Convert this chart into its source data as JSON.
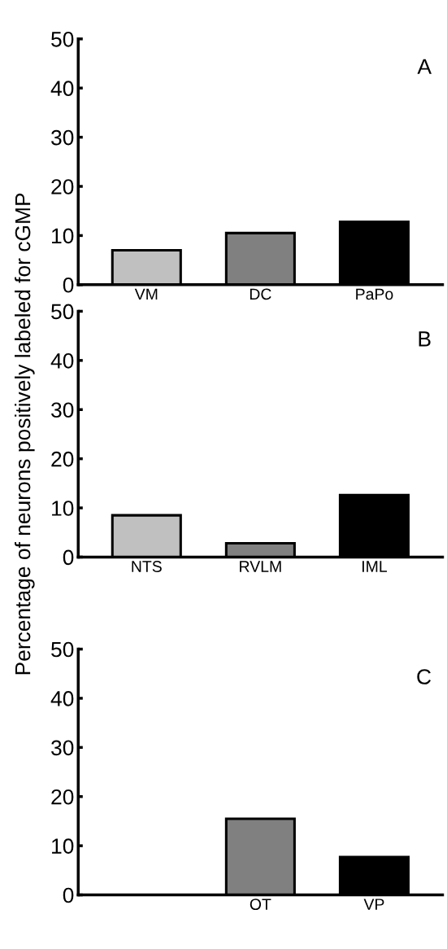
{
  "chart_data": [
    {
      "type": "bar",
      "categories": [
        "VM",
        "DC",
        "PaPo"
      ],
      "values": [
        7,
        10.5,
        12.8
      ],
      "colors": [
        "#c0c0c0",
        "#808080",
        "#000000"
      ],
      "ylim": [
        0,
        50
      ],
      "yticks": [
        0,
        10,
        20,
        30,
        40,
        50
      ],
      "annotations": [
        "A"
      ],
      "grid": false,
      "legend": false
    },
    {
      "type": "bar",
      "categories": [
        "NTS",
        "RVLM",
        "IML"
      ],
      "values": [
        8.5,
        2.8,
        12.6
      ],
      "colors": [
        "#c0c0c0",
        "#808080",
        "#000000"
      ],
      "ylim": [
        0,
        50
      ],
      "yticks": [
        0,
        10,
        20,
        30,
        40,
        50
      ],
      "ylabel": "Percentage of neurons positively labeled for cGMP",
      "annotations": [
        "B"
      ],
      "grid": false,
      "legend": false
    },
    {
      "type": "bar",
      "categories": [
        null,
        "OT",
        "VP"
      ],
      "values": [
        null,
        15.5,
        7.7
      ],
      "colors": [
        "#c0c0c0",
        "#808080",
        "#000000"
      ],
      "ylim": [
        0,
        50
      ],
      "yticks": [
        0,
        10,
        20,
        30,
        40,
        50
      ],
      "annotations": [
        "C"
      ],
      "grid": false,
      "legend": false
    }
  ]
}
